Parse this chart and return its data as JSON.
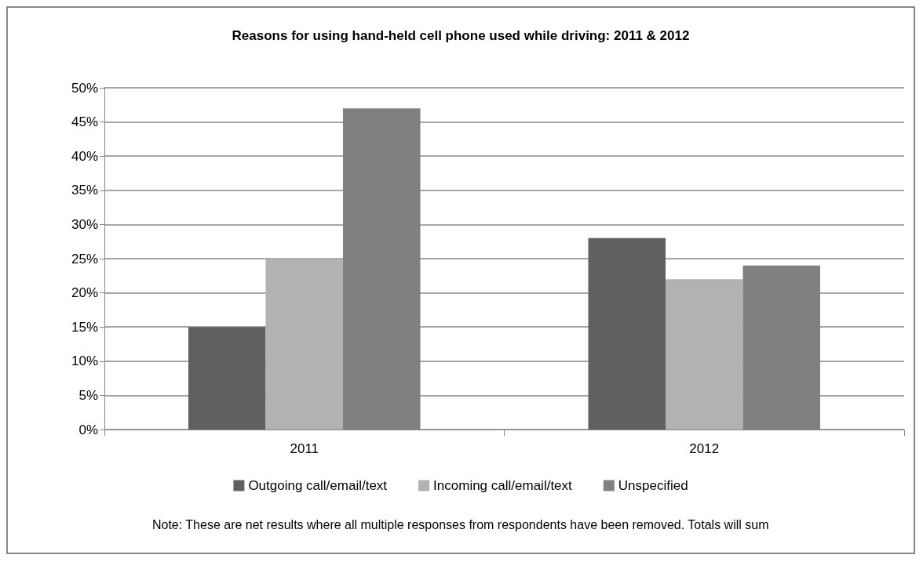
{
  "chart_data": {
    "type": "bar",
    "title": "Reasons for using hand-held cell phone used while driving: 2011 & 2012",
    "categories": [
      "2011",
      "2012"
    ],
    "series": [
      {
        "name": "Outgoing call/email/text",
        "color": "#606060",
        "values": [
          15,
          28
        ]
      },
      {
        "name": "Incoming call/email/text",
        "color": "#b2b2b2",
        "values": [
          25,
          22
        ]
      },
      {
        "name": "Unspecified",
        "color": "#808080",
        "values": [
          47,
          24
        ]
      }
    ],
    "ylim": [
      0,
      50
    ],
    "yticks": [
      {
        "value": 0,
        "label": "0%"
      },
      {
        "value": 5,
        "label": "5%"
      },
      {
        "value": 10,
        "label": "10%"
      },
      {
        "value": 15,
        "label": "15%"
      },
      {
        "value": 20,
        "label": "20%"
      },
      {
        "value": 25,
        "label": "25%"
      },
      {
        "value": 30,
        "label": "30%"
      },
      {
        "value": 35,
        "label": "35%"
      },
      {
        "value": 40,
        "label": "40%"
      },
      {
        "value": 45,
        "label": "45%"
      },
      {
        "value": 50,
        "label": "50%"
      }
    ],
    "grid": "y",
    "legend": "bottom",
    "annotations": [
      "Note: These are net results where all multiple responses from respondents have been removed. Totals will sum"
    ]
  }
}
